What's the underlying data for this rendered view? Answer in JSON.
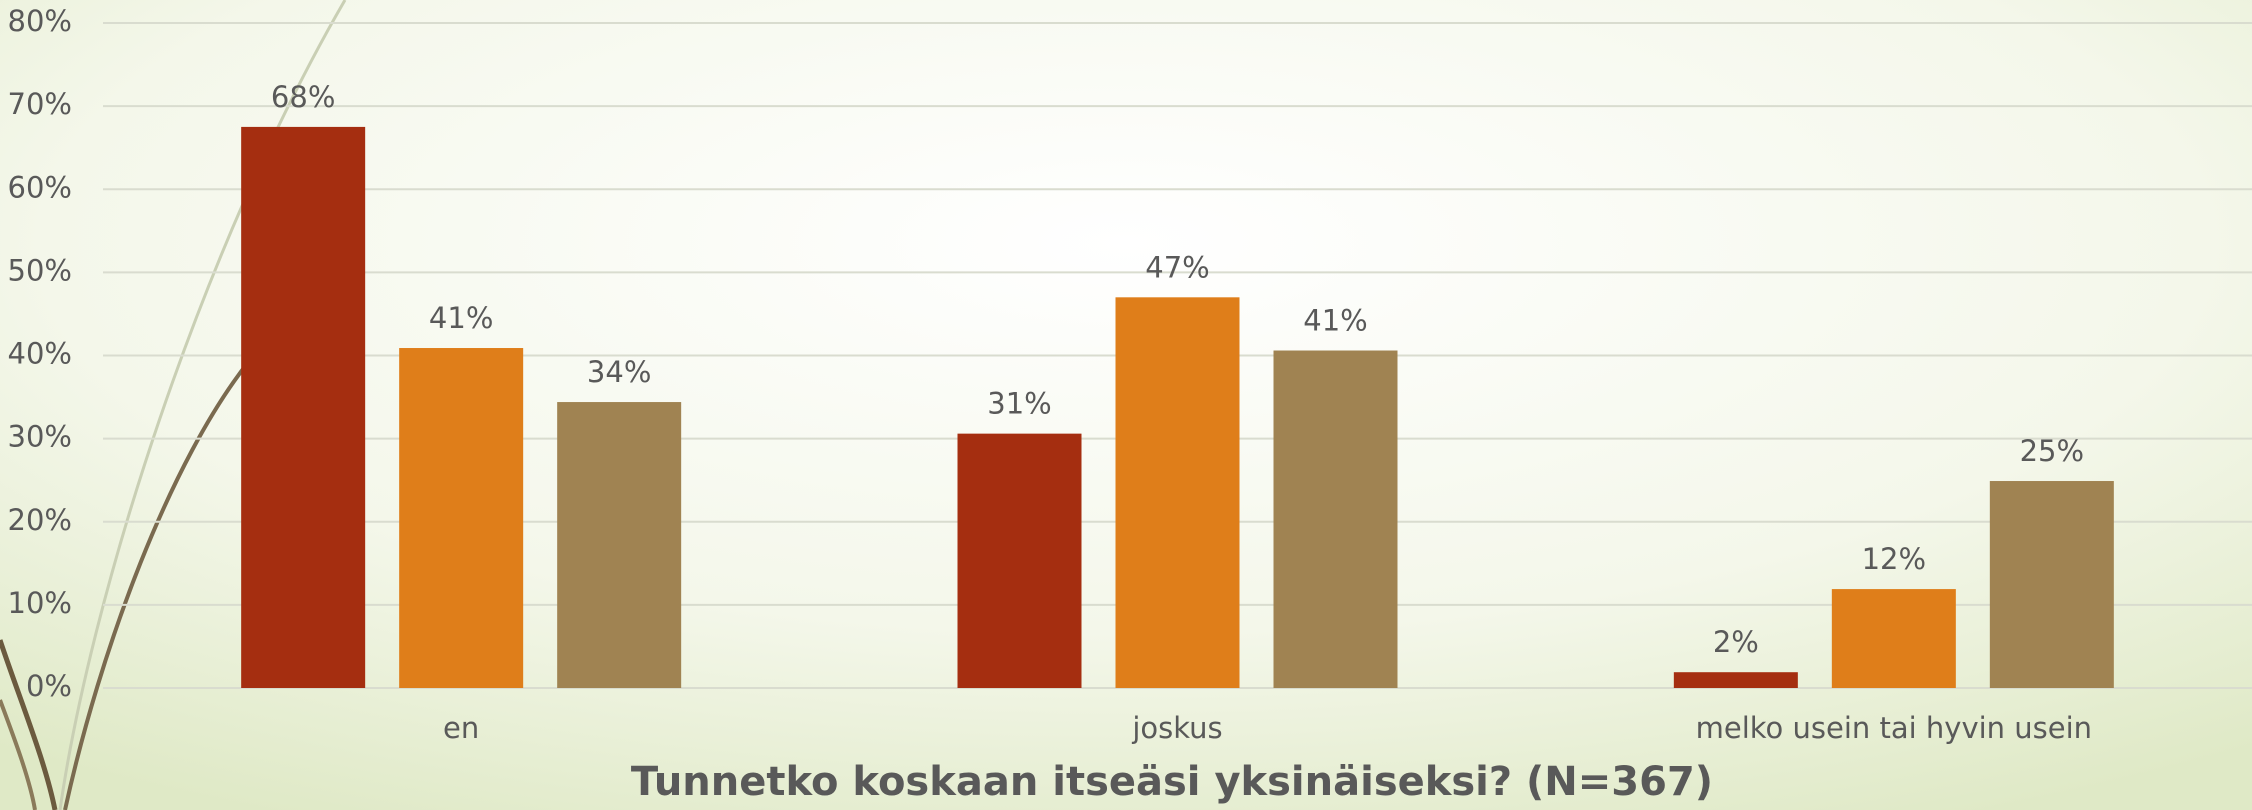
{
  "chart_data": {
    "type": "bar",
    "title": "Tunnetko koskaan itseäsi yksinäiseksi? (N=367)",
    "categories": [
      "en",
      "joskus",
      "melko usein tai hyvin usein"
    ],
    "series": [
      {
        "color": "#a52e10",
        "values": [
          67.5,
          30.6,
          1.9
        ],
        "value_labels": [
          "68%",
          "31%",
          "2%"
        ]
      },
      {
        "color": "#df7e1a",
        "values": [
          40.9,
          47,
          11.9
        ],
        "value_labels": [
          "41%",
          "47%",
          "12%"
        ]
      },
      {
        "color": "#a08352",
        "values": [
          34.4,
          40.6,
          24.9
        ],
        "value_labels": [
          "34%",
          "41%",
          "25%"
        ]
      }
    ],
    "ylim": [
      0,
      80
    ],
    "yticks": [
      {
        "value": 0,
        "label": "0%"
      },
      {
        "value": 10,
        "label": "10%"
      },
      {
        "value": 20,
        "label": "20%"
      },
      {
        "value": 30,
        "label": "30%"
      },
      {
        "value": 40,
        "label": "40%"
      },
      {
        "value": 50,
        "label": "50%"
      },
      {
        "value": 60,
        "label": "60%"
      },
      {
        "value": 70,
        "label": "70%"
      },
      {
        "value": 80,
        "label": "80%"
      }
    ],
    "grid": true
  }
}
